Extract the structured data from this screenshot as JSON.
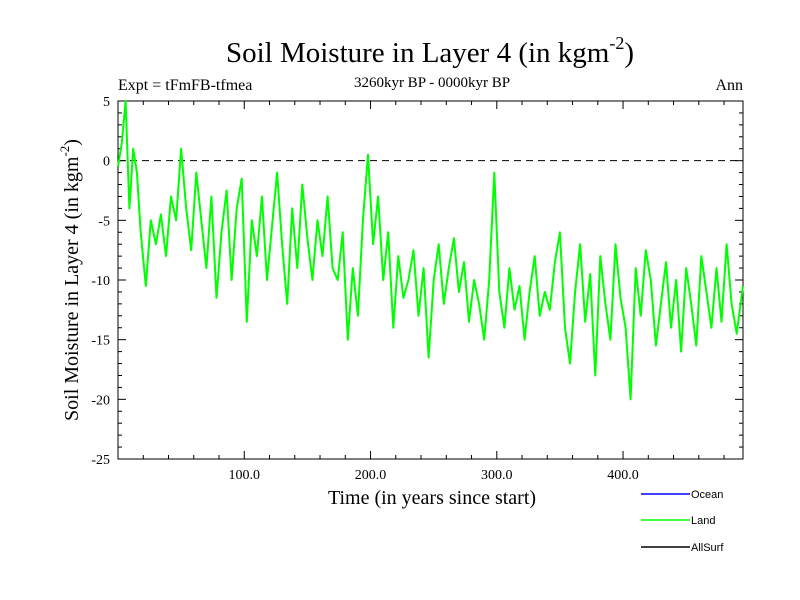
{
  "chart_data": {
    "type": "line",
    "title": "Soil Moisture in Layer 4 (in kgm",
    "title_sup": "-2",
    "title_close": ")",
    "subtitle": "3260kyr BP - 0000kyr BP",
    "experiment": "Expt = tFmFB-tfmea",
    "season": "Ann",
    "xlabel": "Time (in years since start)",
    "ylabel": "Soil Moisture in Layer 4 (in kgm",
    "ylabel_sup": "-2",
    "ylabel_close": ")",
    "xlim": [
      0,
      495
    ],
    "ylim": [
      -25,
      5
    ],
    "x_ticks": [
      100,
      200,
      300,
      400
    ],
    "x_tick_labels": [
      "100.0",
      "200.0",
      "300.0",
      "400.0"
    ],
    "y_ticks": [
      5,
      0,
      -5,
      -10,
      -15,
      -20,
      -25
    ],
    "y_tick_labels": [
      "5",
      "0",
      "-5",
      "-10",
      "-15",
      "-20",
      "-25"
    ],
    "reference_line": 0,
    "legend": [
      {
        "name": "Ocean",
        "color": "#0000ff"
      },
      {
        "name": "Land",
        "color": "#00ff00"
      },
      {
        "name": "AllSurf",
        "color": "#000000"
      }
    ],
    "series": [
      {
        "name": "Land",
        "color": "#00ff00",
        "x": [
          0,
          3,
          6,
          9,
          12,
          15,
          18,
          22,
          26,
          30,
          34,
          38,
          42,
          46,
          50,
          54,
          58,
          62,
          66,
          70,
          74,
          78,
          82,
          86,
          90,
          94,
          98,
          102,
          106,
          110,
          114,
          118,
          122,
          126,
          130,
          134,
          138,
          142,
          146,
          150,
          154,
          158,
          162,
          166,
          170,
          174,
          178,
          182,
          186,
          190,
          194,
          198,
          202,
          206,
          210,
          214,
          218,
          222,
          226,
          230,
          234,
          238,
          242,
          246,
          250,
          254,
          258,
          262,
          266,
          270,
          274,
          278,
          282,
          286,
          290,
          294,
          298,
          302,
          306,
          310,
          314,
          318,
          322,
          326,
          330,
          334,
          338,
          342,
          346,
          350,
          354,
          358,
          362,
          366,
          370,
          374,
          378,
          382,
          386,
          390,
          394,
          398,
          402,
          406,
          410,
          414,
          418,
          422,
          426,
          430,
          434,
          438,
          442,
          446,
          450,
          454,
          458,
          462,
          466,
          470,
          474,
          478,
          482,
          486,
          490,
          495
        ],
        "values": [
          -0.5,
          1.5,
          5.0,
          -4.0,
          1.0,
          -1.0,
          -6.0,
          -10.5,
          -5.0,
          -7.0,
          -4.5,
          -8.0,
          -3.0,
          -5.0,
          1.0,
          -4.0,
          -7.5,
          -1.0,
          -5.0,
          -9.0,
          -3.0,
          -11.5,
          -6.0,
          -2.5,
          -10.0,
          -4.0,
          -1.5,
          -13.5,
          -5.0,
          -8.0,
          -3.0,
          -10.0,
          -5.5,
          -1.0,
          -7.0,
          -12.0,
          -4.0,
          -9.0,
          -2.0,
          -6.5,
          -10.0,
          -5.0,
          -8.0,
          -3.0,
          -9.0,
          -10.0,
          -6.0,
          -15.0,
          -9.0,
          -13.0,
          -5.0,
          0.5,
          -7.0,
          -3.0,
          -10.0,
          -6.0,
          -14.0,
          -8.0,
          -11.5,
          -10.0,
          -7.5,
          -13.0,
          -9.0,
          -16.5,
          -10.0,
          -7.0,
          -12.0,
          -9.0,
          -6.5,
          -11.0,
          -8.5,
          -13.5,
          -10.0,
          -12.0,
          -15.0,
          -10.0,
          -1.0,
          -11.0,
          -14.0,
          -9.0,
          -12.5,
          -10.5,
          -15.0,
          -11.0,
          -8.0,
          -13.0,
          -11.0,
          -12.5,
          -8.5,
          -6.0,
          -14.0,
          -17.0,
          -11.0,
          -7.0,
          -13.5,
          -9.5,
          -18.0,
          -8.0,
          -12.0,
          -15.0,
          -7.0,
          -11.5,
          -14.0,
          -20.0,
          -9.0,
          -13.0,
          -7.5,
          -10.0,
          -15.5,
          -12.0,
          -8.5,
          -14.0,
          -10.0,
          -16.0,
          -9.0,
          -12.0,
          -15.5,
          -8.0,
          -11.0,
          -14.0,
          -9.0,
          -13.5,
          -7.0,
          -12.0,
          -14.5,
          -10.5
        ]
      }
    ]
  }
}
